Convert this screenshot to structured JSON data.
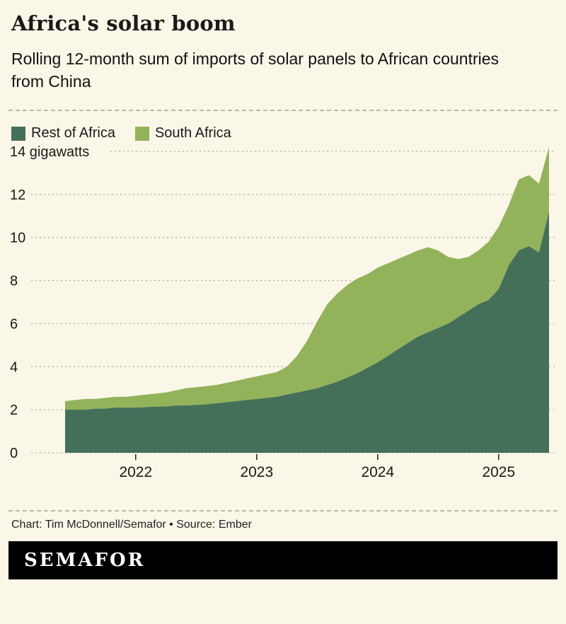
{
  "header": {
    "title": "Africa's solar boom",
    "subtitle": "Rolling 12-month sum of imports of solar panels to African countries from China"
  },
  "legend": [
    {
      "label": "Rest of Africa",
      "color": "#44705a"
    },
    {
      "label": "South Africa",
      "color": "#93b35a"
    }
  ],
  "footer": {
    "credit": "Chart: Tim McDonnell/Semafor • Source: Ember",
    "logo": "SEMAFOR"
  },
  "colors": {
    "background": "#fbf7e8",
    "grid": "#b3af9f",
    "axis_text": "#1a1a1a"
  },
  "chart_data": {
    "type": "area",
    "stacked": true,
    "title": "Africa's solar boom",
    "subtitle": "Rolling 12-month sum of imports of solar panels to African countries from China",
    "ylabel": "gigawatts",
    "ylim": [
      0,
      14
    ],
    "yticks": [
      0,
      2,
      4,
      6,
      8,
      10,
      12,
      14
    ],
    "ytick_labels": [
      "0",
      "2",
      "4",
      "6",
      "8",
      "10",
      "12",
      "14 gigawatts"
    ],
    "grid": "dashed-horizontal",
    "legend_position": "top-left",
    "x": [
      "2021-06",
      "2021-07",
      "2021-08",
      "2021-09",
      "2021-10",
      "2021-11",
      "2021-12",
      "2022-01",
      "2022-02",
      "2022-03",
      "2022-04",
      "2022-05",
      "2022-06",
      "2022-07",
      "2022-08",
      "2022-09",
      "2022-10",
      "2022-11",
      "2022-12",
      "2023-01",
      "2023-02",
      "2023-03",
      "2023-04",
      "2023-05",
      "2023-06",
      "2023-07",
      "2023-08",
      "2023-09",
      "2023-10",
      "2023-11",
      "2023-12",
      "2024-01",
      "2024-02",
      "2024-03",
      "2024-04",
      "2024-05",
      "2024-06",
      "2024-07",
      "2024-08",
      "2024-09",
      "2024-10",
      "2024-11",
      "2024-12",
      "2025-01",
      "2025-02",
      "2025-03",
      "2025-04",
      "2025-05",
      "2025-06"
    ],
    "xticks": [
      {
        "label": "2022",
        "x": "2022-01"
      },
      {
        "label": "2023",
        "x": "2023-01"
      },
      {
        "label": "2024",
        "x": "2024-01"
      },
      {
        "label": "2025",
        "x": "2025-01"
      }
    ],
    "series": [
      {
        "name": "Rest of Africa",
        "color": "#44705a",
        "values": [
          2.0,
          2.0,
          2.0,
          2.05,
          2.05,
          2.1,
          2.1,
          2.1,
          2.12,
          2.15,
          2.15,
          2.2,
          2.2,
          2.22,
          2.25,
          2.3,
          2.35,
          2.4,
          2.45,
          2.5,
          2.55,
          2.6,
          2.7,
          2.8,
          2.9,
          3.0,
          3.15,
          3.3,
          3.5,
          3.7,
          3.95,
          4.2,
          4.5,
          4.8,
          5.1,
          5.4,
          5.6,
          5.8,
          6.0,
          6.3,
          6.6,
          6.9,
          7.1,
          7.6,
          8.7,
          9.4,
          9.6,
          9.3,
          11.2
        ]
      },
      {
        "name": "South Africa",
        "color": "#93b35a",
        "values": [
          0.4,
          0.45,
          0.5,
          0.45,
          0.5,
          0.5,
          0.5,
          0.55,
          0.58,
          0.6,
          0.65,
          0.7,
          0.8,
          0.83,
          0.85,
          0.85,
          0.9,
          0.95,
          1.0,
          1.05,
          1.1,
          1.15,
          1.3,
          1.7,
          2.3,
          3.1,
          3.75,
          4.1,
          4.3,
          4.4,
          4.35,
          4.4,
          4.3,
          4.2,
          4.1,
          4.0,
          3.95,
          3.6,
          3.1,
          2.7,
          2.5,
          2.5,
          2.7,
          2.9,
          2.8,
          3.3,
          3.3,
          3.2,
          3.0
        ]
      }
    ]
  }
}
